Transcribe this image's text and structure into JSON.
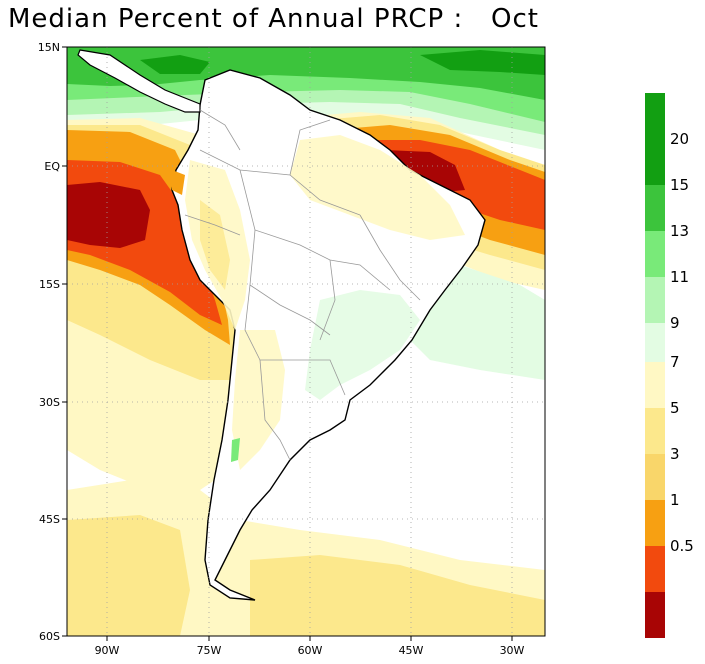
{
  "title": "Median Percent of Annual PRCP :   Oct",
  "lat_labels": [
    "15N",
    "EQ",
    "15S",
    "30S",
    "45S",
    "60S"
  ],
  "lon_labels": [
    "90W",
    "75W",
    "60W",
    "45W",
    "30W"
  ],
  "colorbar": {
    "upper": [
      {
        "label": "20",
        "color": "#129f12"
      },
      {
        "label": "15",
        "color": "#3cc43c"
      },
      {
        "label": "13",
        "color": "#79ea79"
      },
      {
        "label": "11",
        "color": "#b4f5b4"
      },
      {
        "label": "9",
        "color": "#e3fce3"
      }
    ],
    "upper_top_color": "#129f12",
    "lower": [
      {
        "label": "7",
        "color": "#fff8c4"
      },
      {
        "label": "5",
        "color": "#fce88c"
      },
      {
        "label": "3",
        "color": "#f9d66a"
      },
      {
        "label": "1",
        "color": "#f7a012"
      },
      {
        "label": "0.5",
        "color": "#f24a0e"
      }
    ],
    "lower_bottom_color": "#a80505"
  },
  "colors": {
    "land": "#ffffff",
    "coast": "#000000",
    "borders": "#999999",
    "grid": "#a0a0a0",
    "dark_red": "#a80505",
    "red": "#f24a0e",
    "orange": "#f7a012",
    "yellow": "#f9d66a",
    "pale_yellow": "#fce88c",
    "cream": "#fff8c4",
    "pale_green": "#e3fce3",
    "light_green": "#b4f5b4",
    "mid_green": "#79ea79",
    "green": "#3cc43c",
    "dark_green": "#129f12"
  }
}
